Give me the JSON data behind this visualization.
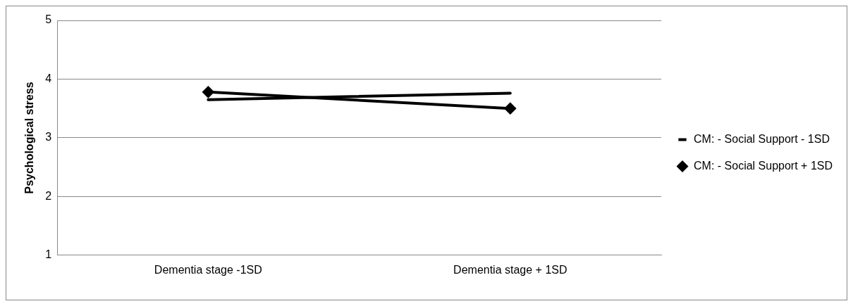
{
  "chart_data": {
    "type": "line",
    "ylabel": "Psychological stress",
    "categories": [
      "Dementia stage -1SD",
      "Dementia stage + 1SD"
    ],
    "series": [
      {
        "name": "CM: - Social Support - 1SD",
        "color": "#000000",
        "values": [
          3.65,
          3.76
        ],
        "marker": "none"
      },
      {
        "name": "CM: - Social Support + 1SD",
        "color": "#000000",
        "values": [
          3.78,
          3.5
        ],
        "marker": "diamond"
      }
    ],
    "ylim": [
      1,
      5
    ],
    "yticks": [
      1,
      2,
      3,
      4,
      5
    ],
    "grid": "y",
    "legend": "right",
    "line_style": "solid"
  }
}
